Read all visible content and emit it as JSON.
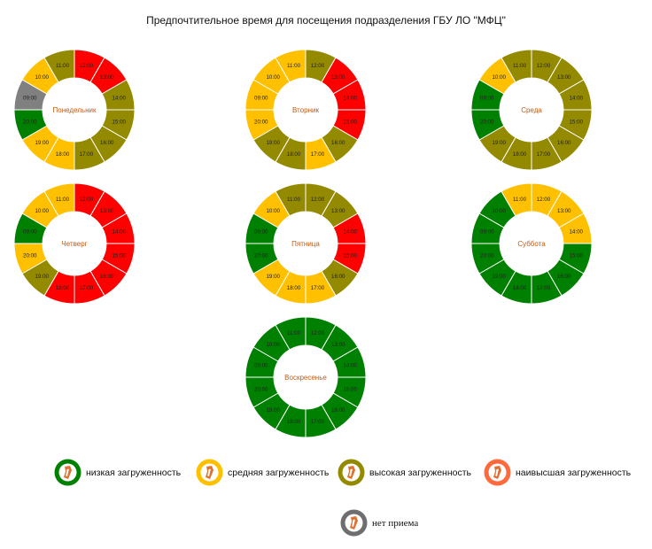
{
  "title": "Предпочтительное время для посещения подразделения ГБУ ЛО \"МФЦ\"",
  "colors": {
    "low": "#008000",
    "medium": "#ffc000",
    "high": "#948a00",
    "highest": "#ff0000",
    "closed": "#808080"
  },
  "legend": [
    {
      "key": "low",
      "label": "низкая загруженность",
      "ring": "#008000",
      "icon": "mfc-logo-icon"
    },
    {
      "key": "medium",
      "label": "средняя загруженность",
      "ring": "#ffc000",
      "icon": "mfc-logo-icon"
    },
    {
      "key": "high",
      "label": "высокая загруженность",
      "ring": "#948a00",
      "icon": "mfc-logo-icon"
    },
    {
      "key": "highest",
      "label": "наивысшая загруженность",
      "ring": "#ff6a3d",
      "icon": "mfc-logo-icon"
    },
    {
      "key": "closed",
      "label": "нет приема",
      "ring": "#6e6e6e",
      "icon": "mfc-logo-icon"
    }
  ],
  "chart_data": {
    "type": "donut",
    "slots": [
      "12:00",
      "13:00",
      "14:00",
      "15:00",
      "16:00",
      "17:00",
      "18:00",
      "19:00",
      "20:00",
      "09:00",
      "10:00",
      "11:00"
    ],
    "days": [
      {
        "name": "Понедельник",
        "load": [
          "highest",
          "highest",
          "high",
          "high",
          "high",
          "high",
          "medium",
          "medium",
          "low",
          "closed",
          "medium",
          "high"
        ]
      },
      {
        "name": "Вторник",
        "load": [
          "high",
          "highest",
          "highest",
          "highest",
          "high",
          "medium",
          "high",
          "high",
          "medium",
          "medium",
          "medium",
          "medium"
        ]
      },
      {
        "name": "Среда",
        "load": [
          "high",
          "high",
          "high",
          "high",
          "high",
          "high",
          "high",
          "high",
          "low",
          "low",
          "medium",
          "high"
        ]
      },
      {
        "name": "Четверг",
        "load": [
          "highest",
          "highest",
          "highest",
          "highest",
          "highest",
          "highest",
          "highest",
          "high",
          "medium",
          "low",
          "medium",
          "medium"
        ]
      },
      {
        "name": "Пятница",
        "load": [
          "high",
          "high",
          "highest",
          "highest",
          "high",
          "medium",
          "medium",
          "medium",
          "low",
          "low",
          "medium",
          "high"
        ]
      },
      {
        "name": "Суббота",
        "load": [
          "medium",
          "medium",
          "medium",
          "low",
          "low",
          "low",
          "low",
          "low",
          "low",
          "low",
          "low",
          "medium"
        ]
      },
      {
        "name": "Воскресенье",
        "load": [
          "low",
          "low",
          "low",
          "low",
          "low",
          "low",
          "low",
          "low",
          "low",
          "low",
          "low",
          "low"
        ]
      }
    ]
  }
}
